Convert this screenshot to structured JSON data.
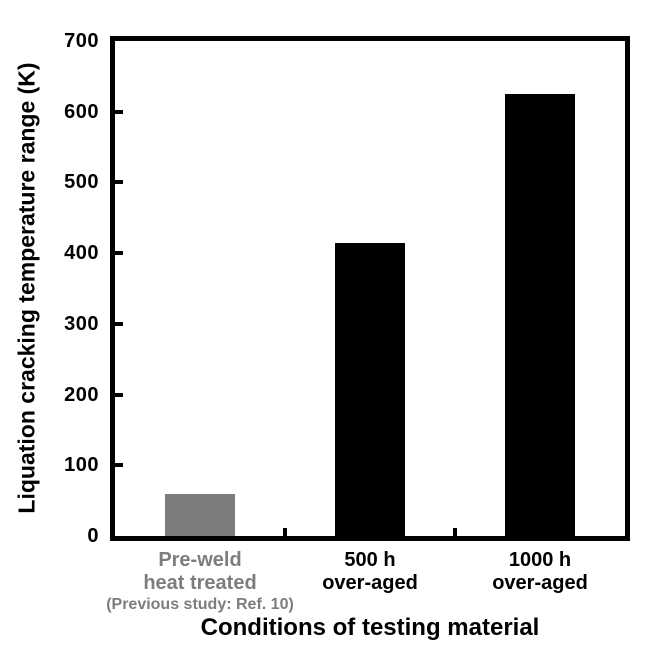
{
  "chart_data": {
    "type": "bar",
    "title": "",
    "xlabel": "Conditions of testing material",
    "ylabel": "Liquation cracking temperature range (K)",
    "categories": [
      "Pre-weld\nheat treated",
      "500 h\nover-aged",
      "1000 h\nover-aged"
    ],
    "category_notes": [
      "(Previous study: Ref. 10)",
      "",
      ""
    ],
    "category_label_colors": [
      "#7d7d7d",
      "#000000",
      "#000000"
    ],
    "values": [
      60,
      415,
      625
    ],
    "bar_colors": [
      "#7d7d7d",
      "#000000",
      "#000000"
    ],
    "ylim": [
      0,
      700
    ],
    "yticks": [
      0,
      100,
      200,
      300,
      400,
      500,
      600,
      700
    ],
    "grid": false,
    "legend": null,
    "axis_color": "#000000",
    "plot_border": "full-box",
    "tick_direction": "in"
  }
}
